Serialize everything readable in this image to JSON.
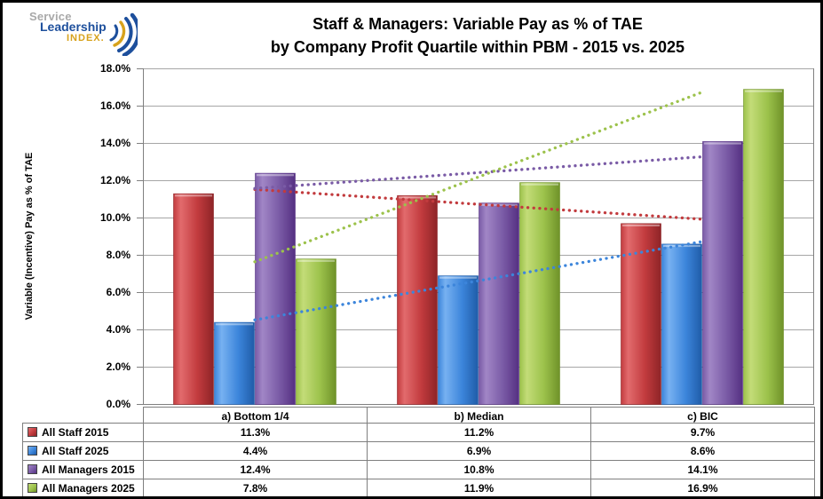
{
  "logo": {
    "service": "Service",
    "leadership": "Leadership",
    "index": "INDEX.",
    "colors": {
      "gray": "#a9a9a9",
      "blue": "#1d4f9c",
      "gold": "#d7a21b"
    }
  },
  "title": {
    "line1": "Staff & Managers: Variable Pay as % of TAE",
    "line2": "by Company Profit Quartile within PBM - 2015 vs. 2025"
  },
  "chart_data": {
    "type": "bar",
    "title": "Staff & Managers: Variable Pay as % of TAE by Company Profit Quartile within PBM - 2015 vs. 2025",
    "xlabel": "",
    "ylabel": "Variable (Incentive) Pay as % of TAE",
    "categories": [
      "a) Bottom 1/4",
      "b) Median",
      "c) BIC"
    ],
    "series": [
      {
        "name": "All Staff 2015",
        "values": [
          11.3,
          11.2,
          9.7
        ],
        "color": "#c23b3e",
        "light": "#e26b6d",
        "dark": "#8e2427",
        "trendline": true
      },
      {
        "name": "All Staff 2025",
        "values": [
          4.4,
          6.9,
          8.6
        ],
        "color": "#3c85db",
        "light": "#77b1f1",
        "dark": "#1f5ca8",
        "trendline": true
      },
      {
        "name": "All Managers 2015",
        "values": [
          12.4,
          10.8,
          14.1
        ],
        "color": "#7a5ba6",
        "light": "#a econ",
        "dark": "#553082",
        "trendline": true
      },
      {
        "name": "All Managers 2025",
        "values": [
          7.8,
          11.9,
          16.9
        ],
        "color": "#9cc24b",
        "light": "#c3dc78",
        "dark": "#6f9229",
        "trendline": true
      }
    ],
    "ylim": [
      0,
      18
    ],
    "ytick_step": 2,
    "ytick_labels": [
      "18.0%",
      "16.0%",
      "14.0%",
      "12.0%",
      "10.0%",
      "8.0%",
      "6.0%",
      "4.0%",
      "2.0%",
      "0.0%"
    ],
    "value_format": "percent-1-decimal",
    "grid": true,
    "legend_position": "table-bottom",
    "gridline_color": "#a6a6a6",
    "axis_color": "#808080",
    "trendline_style": "dotted"
  }
}
